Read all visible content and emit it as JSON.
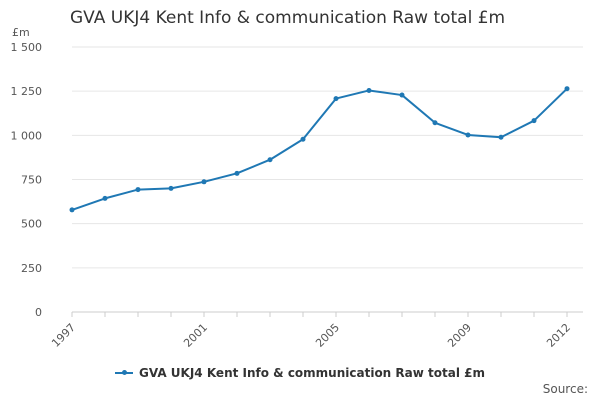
{
  "title": "GVA UKJ4 Kent Info & communication Raw total £m",
  "unit_label": "£m",
  "source_label": "Source:",
  "colors": {
    "series": "#1f78b4",
    "grid": "#e6e6e6",
    "axis_text": "#555555"
  },
  "chart_data": {
    "type": "line",
    "title": "GVA UKJ4 Kent Info & communication Raw total £m",
    "xlabel": "",
    "ylabel": "£m",
    "x": [
      1997,
      1998,
      1999,
      2000,
      2001,
      2002,
      2003,
      2004,
      2005,
      2006,
      2007,
      2008,
      2009,
      2010,
      2011,
      2012
    ],
    "x_tick_labels": [
      "1997",
      "2001",
      "2005",
      "2009",
      "2012"
    ],
    "y_tick_labels": [
      "0",
      "250",
      "500",
      "750",
      "1 000",
      "1 250",
      "1 500"
    ],
    "y_ticks": [
      0,
      250,
      500,
      750,
      1000,
      1250,
      1500
    ],
    "ylim": [
      0,
      1500
    ],
    "grid": true,
    "legend_position": "bottom",
    "series": [
      {
        "name": "GVA UKJ4 Kent Info & communication Raw total £m",
        "values": [
          578,
          643,
          693,
          700,
          737,
          785,
          862,
          978,
          1208,
          1254,
          1228,
          1071,
          1002,
          989,
          1083,
          1264
        ]
      }
    ]
  }
}
